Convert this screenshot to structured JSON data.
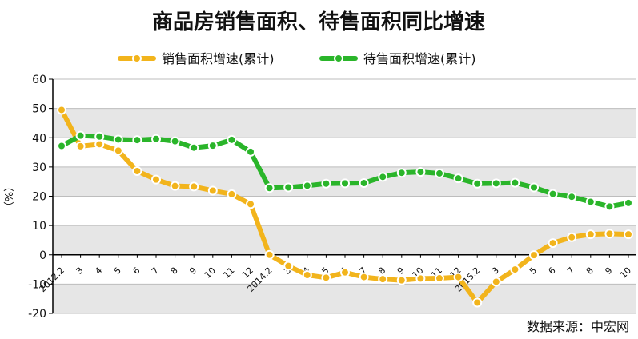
{
  "chart_data": {
    "type": "line",
    "title": "商品房销售面积、待售面积同比增速",
    "ylabel": "（%）",
    "xlabel": "",
    "ylim": [
      -20,
      60
    ],
    "yticks": [
      -20,
      -10,
      0,
      10,
      20,
      30,
      40,
      50,
      60
    ],
    "grid": true,
    "legend_position": "top",
    "source": "数据来源：中宏网",
    "categories": [
      "2012.2",
      "3",
      "4",
      "5",
      "6",
      "7",
      "8",
      "9",
      "10",
      "11",
      "12",
      "2014.2",
      "3",
      "4",
      "5",
      "6",
      "7",
      "8",
      "9",
      "10",
      "11",
      "12",
      "2015.2",
      "3",
      "4",
      "5",
      "6",
      "7",
      "8",
      "9",
      "10"
    ],
    "series": [
      {
        "name": "销售面积增速(累计)",
        "color": "#f2b41c",
        "values": [
          49.5,
          37.1,
          37.8,
          35.6,
          28.6,
          25.7,
          23.5,
          23.3,
          21.9,
          20.7,
          17.3,
          0.0,
          -3.8,
          -6.9,
          -7.8,
          -6.0,
          -7.6,
          -8.3,
          -8.7,
          -8.1,
          -8.0,
          -7.6,
          -16.3,
          -9.2,
          -5.0,
          -0.1,
          4.0,
          6.0,
          7.0,
          7.2,
          7.0
        ]
      },
      {
        "name": "待售面积增速(累计)",
        "color": "#2ab52a",
        "values": [
          37.2,
          40.7,
          40.4,
          39.4,
          39.2,
          39.6,
          38.8,
          36.6,
          37.3,
          39.3,
          35.2,
          22.8,
          23.0,
          23.6,
          24.3,
          24.4,
          24.5,
          26.6,
          28.0,
          28.3,
          27.8,
          26.1,
          24.3,
          24.4,
          24.6,
          23.0,
          20.8,
          19.8,
          18.1,
          16.5,
          17.7
        ]
      }
    ]
  }
}
